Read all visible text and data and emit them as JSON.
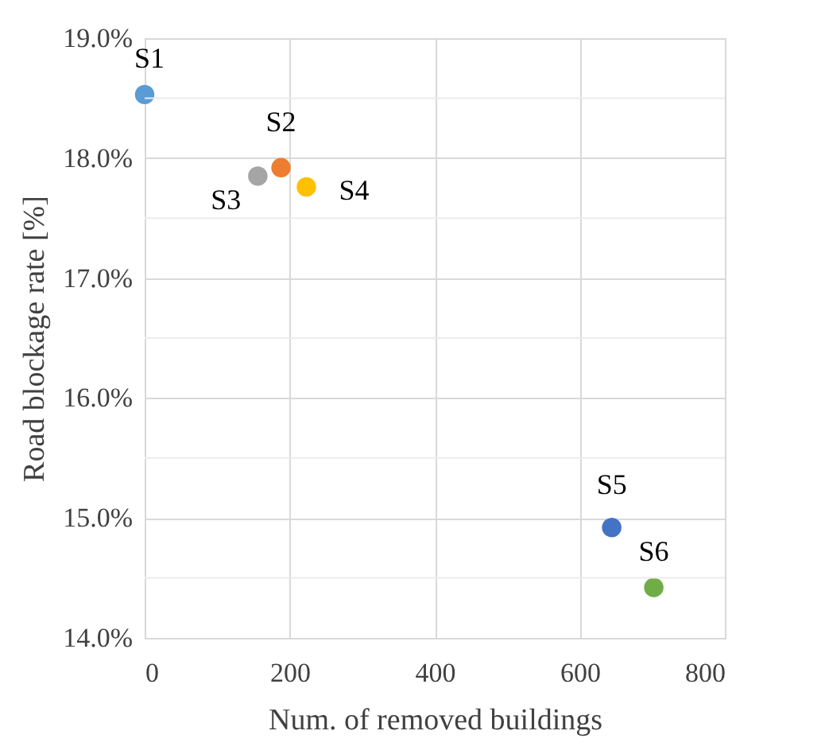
{
  "chart_data": {
    "type": "scatter",
    "xlabel": "Num. of removed buildings",
    "ylabel": "Road blockage rate [%]",
    "xlim": [
      0,
      800
    ],
    "xticks": [
      0,
      200,
      400,
      600,
      800
    ],
    "ylim": [
      14,
      19
    ],
    "yticks": [
      {
        "value": 14,
        "label": "14.0%"
      },
      {
        "value": 14.5,
        "label": null
      },
      {
        "value": 15,
        "label": "15.0%"
      },
      {
        "value": 15.5,
        "label": null
      },
      {
        "value": 16,
        "label": "16.0%"
      },
      {
        "value": 16.5,
        "label": null
      },
      {
        "value": 17,
        "label": "17.0%"
      },
      {
        "value": 17.5,
        "label": null
      },
      {
        "value": 18,
        "label": "18.0%"
      },
      {
        "value": 18.5,
        "label": null
      },
      {
        "value": 19,
        "label": "19.0%"
      }
    ],
    "grid": true,
    "marker": "circle",
    "series": [
      {
        "name": "S1",
        "color": "#5b9bd5",
        "x": [
          0
        ],
        "values": [
          18.53
        ]
      },
      {
        "name": "S2",
        "color": "#ed7d31",
        "x": [
          188
        ],
        "values": [
          17.92
        ]
      },
      {
        "name": "S3",
        "color": "#a5a5a5",
        "x": [
          156
        ],
        "values": [
          17.85
        ]
      },
      {
        "name": "S4",
        "color": "#ffc000",
        "x": [
          223
        ],
        "values": [
          17.76
        ]
      },
      {
        "name": "S5",
        "color": "#4472c4",
        "x": [
          644
        ],
        "values": [
          14.92
        ]
      },
      {
        "name": "S6",
        "color": "#70ad47",
        "x": [
          702
        ],
        "values": [
          14.42
        ]
      }
    ]
  }
}
